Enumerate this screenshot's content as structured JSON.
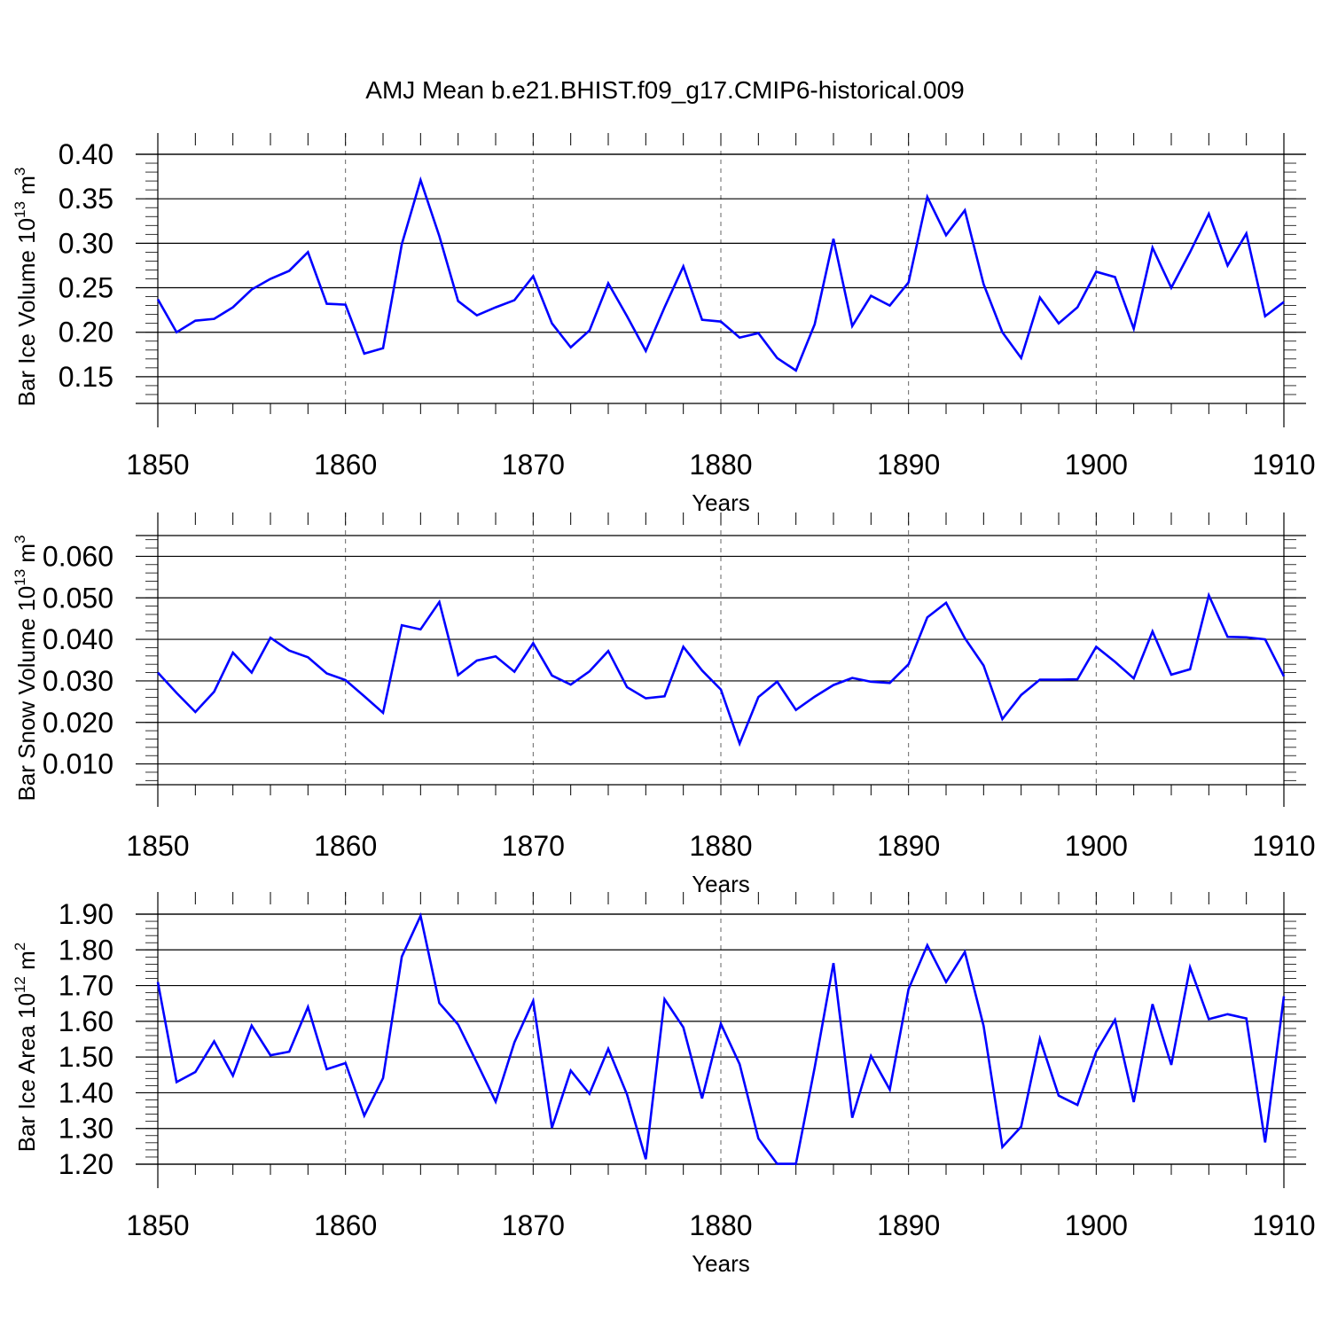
{
  "title": "AMJ Mean b.e21.BHIST.f09_g17.CMIP6-historical.009",
  "colors": {
    "line": "#0000ff",
    "axis": "#000000",
    "grid": "#666666"
  },
  "chart_data": [
    {
      "type": "line",
      "ylabel": "Bar Ice Volume 10",
      "ylabel_exp": "13",
      "ylabel_unit": "m",
      "ylabel_unit_exp": "3",
      "xlabel": "Years",
      "xlim": [
        1850,
        1910
      ],
      "ylim": [
        0.12,
        0.4
      ],
      "xticks": [
        1850,
        1860,
        1870,
        1880,
        1890,
        1900,
        1910
      ],
      "xtick_labels": [
        "1850",
        "1860",
        "1870",
        "1880",
        "1890",
        "1900",
        "1910"
      ],
      "yticks": [
        0.15,
        0.2,
        0.25,
        0.3,
        0.35,
        0.4
      ],
      "ytick_labels": [
        "0.15",
        "0.20",
        "0.25",
        "0.30",
        "0.35",
        "0.40"
      ],
      "grid": "vertical dashed at decades",
      "series": [
        {
          "name": "Bar Ice Volume",
          "x_start": 1850,
          "values": [
            0.237,
            0.2,
            0.213,
            0.215,
            0.228,
            0.248,
            0.26,
            0.269,
            0.29,
            0.232,
            0.231,
            0.176,
            0.182,
            0.299,
            0.371,
            0.308,
            0.235,
            0.219,
            0.228,
            0.236,
            0.263,
            0.21,
            0.183,
            0.202,
            0.255,
            0.218,
            0.179,
            0.228,
            0.274,
            0.214,
            0.212,
            0.194,
            0.199,
            0.171,
            0.157,
            0.209,
            0.305,
            0.207,
            0.241,
            0.23,
            0.256,
            0.352,
            0.309,
            0.337,
            0.254,
            0.2,
            0.171,
            0.239,
            0.21,
            0.228,
            0.268,
            0.262,
            0.204,
            0.295,
            0.25,
            0.29,
            0.333,
            0.275,
            0.311,
            0.218,
            0.234
          ]
        }
      ]
    },
    {
      "type": "line",
      "ylabel": "Bar Snow Volume 10",
      "ylabel_exp": "13",
      "ylabel_unit": "m",
      "ylabel_unit_exp": "3",
      "xlabel": "Years",
      "xlim": [
        1850,
        1910
      ],
      "ylim": [
        0.005,
        0.065
      ],
      "xticks": [
        1850,
        1860,
        1870,
        1880,
        1890,
        1900,
        1910
      ],
      "xtick_labels": [
        "1850",
        "1860",
        "1870",
        "1880",
        "1890",
        "1900",
        "1910"
      ],
      "yticks": [
        0.01,
        0.02,
        0.03,
        0.04,
        0.05,
        0.06
      ],
      "ytick_labels": [
        "0.010",
        "0.020",
        "0.030",
        "0.040",
        "0.050",
        "0.060"
      ],
      "grid": "vertical dashed at decades",
      "series": [
        {
          "name": "Bar Snow Volume",
          "x_start": 1850,
          "values": [
            0.032,
            0.0271,
            0.0225,
            0.0274,
            0.0368,
            0.032,
            0.0404,
            0.0373,
            0.0357,
            0.0318,
            0.0302,
            0.0263,
            0.0223,
            0.0434,
            0.0424,
            0.049,
            0.0314,
            0.0349,
            0.0359,
            0.0322,
            0.0391,
            0.0313,
            0.0291,
            0.0323,
            0.0372,
            0.0285,
            0.0258,
            0.0263,
            0.0382,
            0.0325,
            0.0279,
            0.0149,
            0.0261,
            0.0298,
            0.023,
            0.0262,
            0.029,
            0.0307,
            0.0298,
            0.0295,
            0.034,
            0.0453,
            0.0488,
            0.0403,
            0.0337,
            0.0208,
            0.0266,
            0.0303,
            0.0303,
            0.0304,
            0.0382,
            0.0346,
            0.0306,
            0.0419,
            0.0315,
            0.0328,
            0.0506,
            0.0406,
            0.0405,
            0.04,
            0.0311
          ]
        }
      ]
    },
    {
      "type": "line",
      "ylabel": "Bar Ice Area 10",
      "ylabel_exp": "12",
      "ylabel_unit": "m",
      "ylabel_unit_exp": "2",
      "xlabel": "Years",
      "xlim": [
        1850,
        1910
      ],
      "ylim": [
        1.2,
        1.9
      ],
      "xticks": [
        1850,
        1860,
        1870,
        1880,
        1890,
        1900,
        1910
      ],
      "xtick_labels": [
        "1850",
        "1860",
        "1870",
        "1880",
        "1890",
        "1900",
        "1910"
      ],
      "yticks": [
        1.2,
        1.3,
        1.4,
        1.5,
        1.6,
        1.7,
        1.8,
        1.9
      ],
      "ytick_labels": [
        "1.20",
        "1.30",
        "1.40",
        "1.50",
        "1.60",
        "1.70",
        "1.80",
        "1.90"
      ],
      "grid": "vertical dashed at decades",
      "series": [
        {
          "name": "Bar Ice Area",
          "x_start": 1850,
          "values": [
            1.71,
            1.43,
            1.458,
            1.544,
            1.448,
            1.588,
            1.505,
            1.515,
            1.64,
            1.466,
            1.483,
            1.336,
            1.441,
            1.781,
            1.895,
            1.651,
            1.591,
            1.484,
            1.375,
            1.541,
            1.657,
            1.302,
            1.462,
            1.397,
            1.523,
            1.395,
            1.214,
            1.662,
            1.583,
            1.384,
            1.593,
            1.48,
            1.272,
            1.201,
            1.201,
            1.471,
            1.763,
            1.33,
            1.503,
            1.409,
            1.69,
            1.813,
            1.71,
            1.794,
            1.587,
            1.248,
            1.305,
            1.551,
            1.392,
            1.366,
            1.515,
            1.604,
            1.374,
            1.648,
            1.478,
            1.751,
            1.606,
            1.62,
            1.608,
            1.261,
            1.67
          ]
        }
      ]
    }
  ]
}
